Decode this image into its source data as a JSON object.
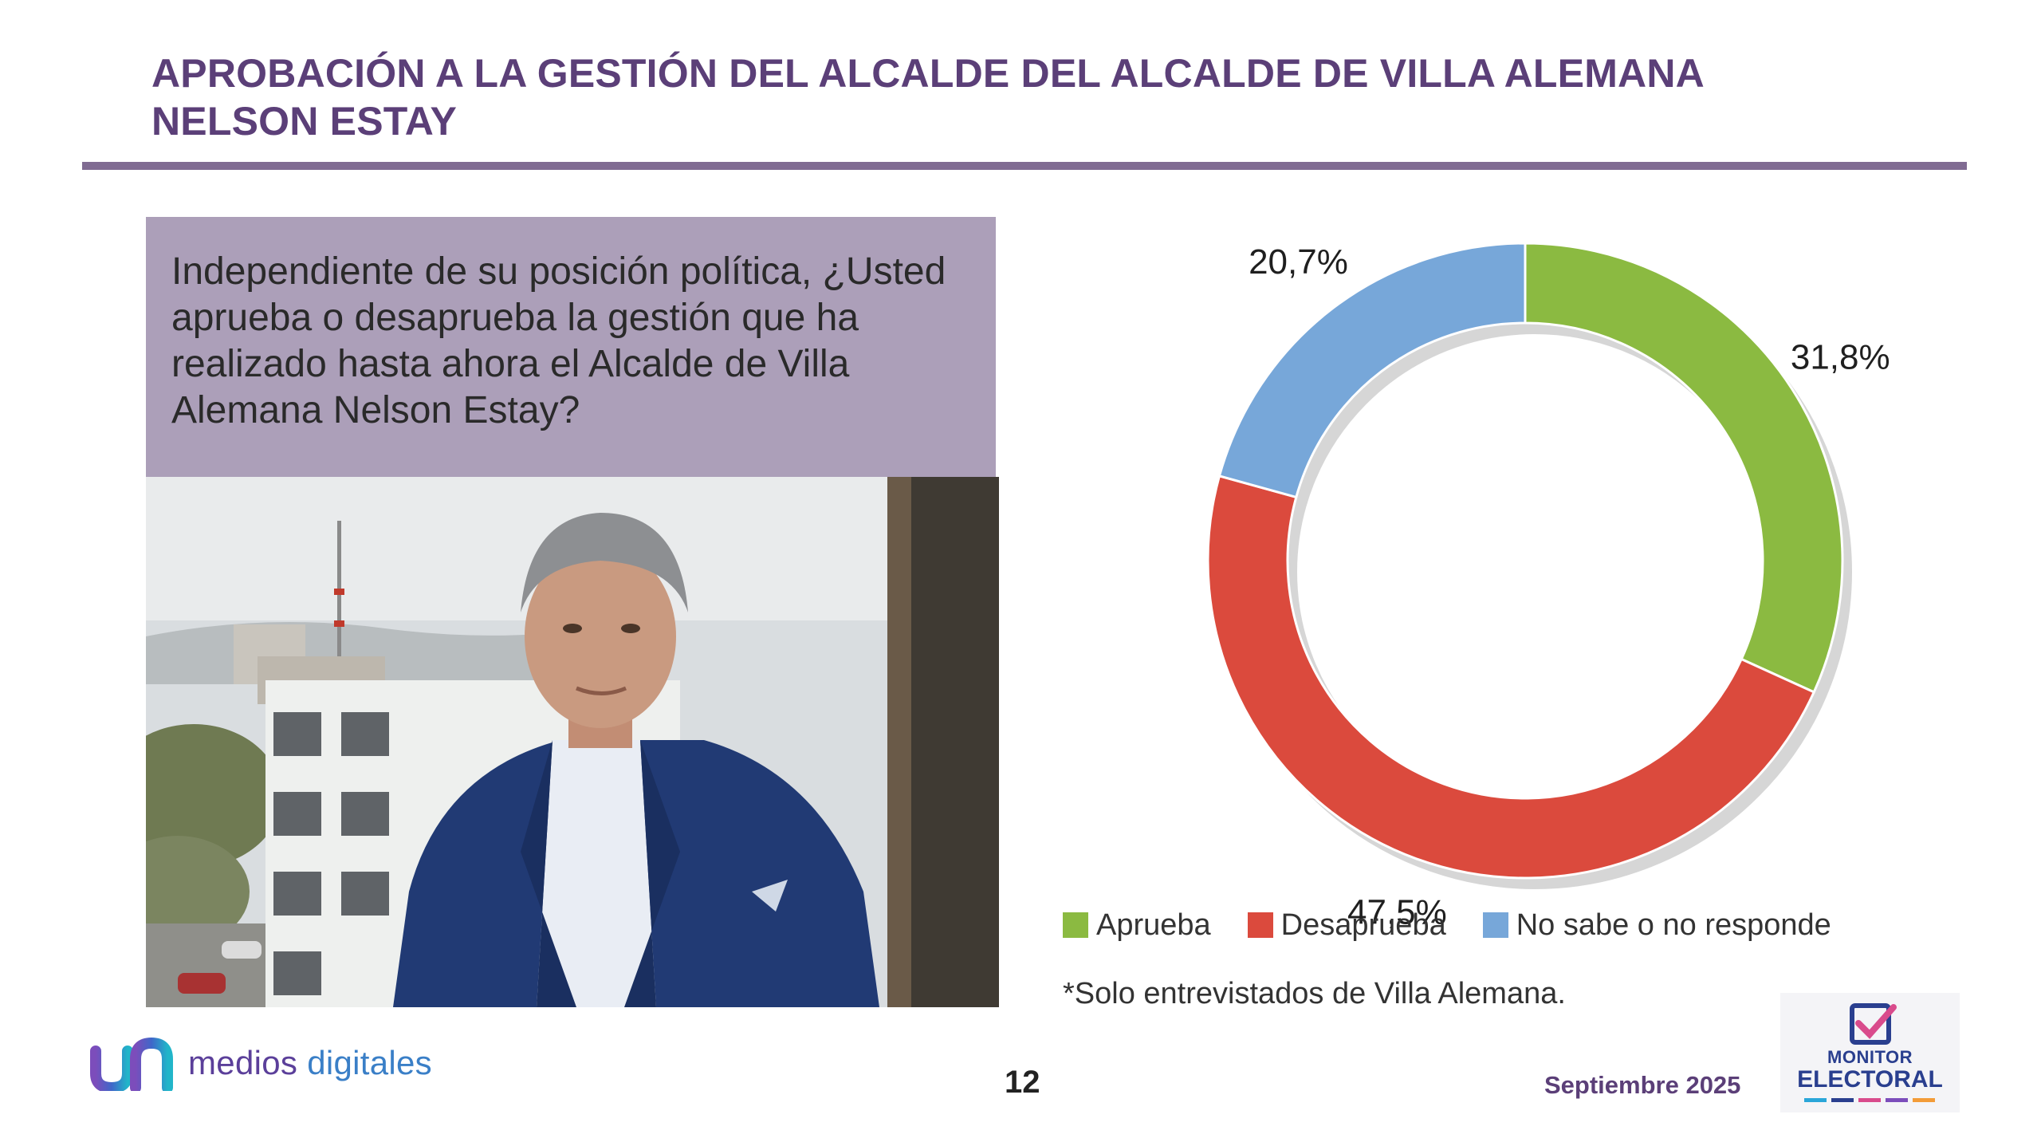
{
  "title": {
    "line1": "APROBACIÓN A LA GESTIÓN DEL ALCALDE DEL ALCALDE DE VILLA ALEMANA",
    "line2": "NELSON ESTAY"
  },
  "question": "Independiente de su posición política, ¿Usted aprueba o desaprueba la gestión que ha realizado hasta ahora el Alcalde de Villa Alemana Nelson Estay?",
  "chart_data": {
    "type": "pie",
    "variant": "donut",
    "unit": "%",
    "categories": [
      "Aprueba",
      "Desaprueba",
      "No sabe o no responde"
    ],
    "values": [
      31.8,
      47.5,
      20.7
    ],
    "data_labels": [
      "31,8%",
      "47,5%",
      "20,7%"
    ],
    "colors": [
      "#8bba41",
      "#db4a3d",
      "#77a7d9"
    ],
    "legend_position": "bottom",
    "title": "",
    "xlabel": "",
    "ylabel": ""
  },
  "legend": {
    "items": [
      {
        "label": "Aprueba",
        "color": "#8bba41"
      },
      {
        "label": "Desaprueba",
        "color": "#db4a3d"
      },
      {
        "label": "No sabe o no responde",
        "color": "#77a7d9"
      }
    ]
  },
  "note": "*Solo entrevistados de Villa Alemana.",
  "footer": {
    "logo_text": "medios digitales",
    "page_number": "12",
    "date": "Septiembre 2025",
    "monitor_line1": "MONITOR",
    "monitor_line2": "ELECTORAL"
  },
  "colors": {
    "accent": "#5b3f78",
    "rule": "#806b92",
    "question_box": "#ac9fb9"
  },
  "icons": {
    "photo": "portrait-photo",
    "logo": "medios-digitales-logo-icon",
    "monitor": "ballot-check-icon"
  }
}
